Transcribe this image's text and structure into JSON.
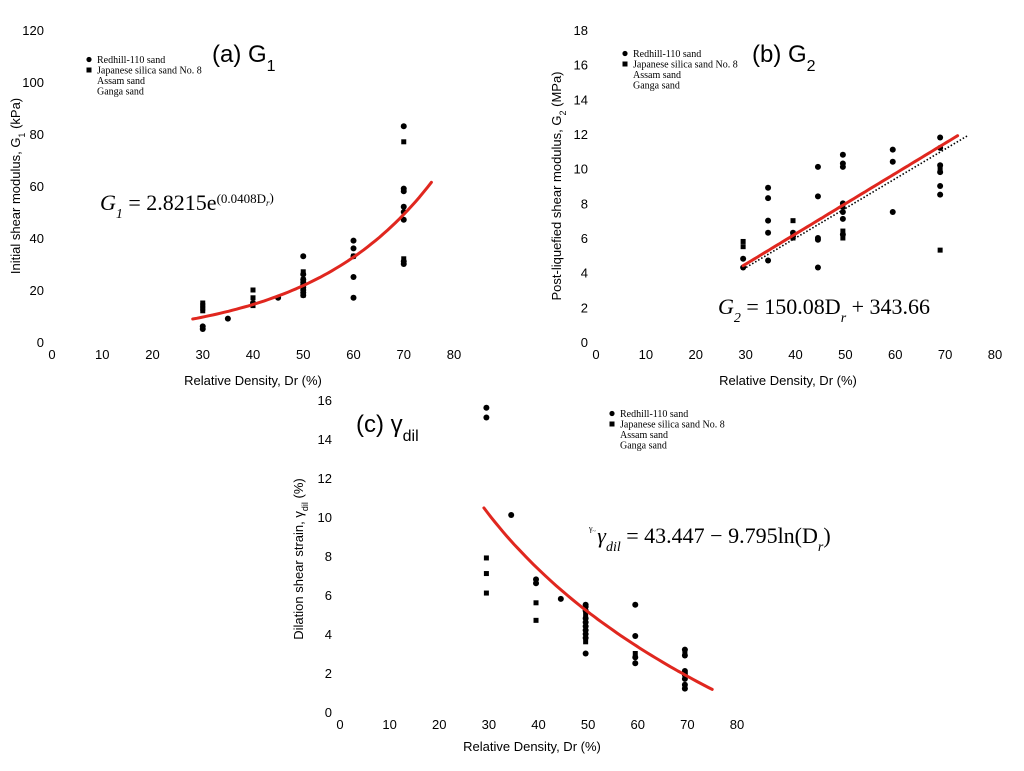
{
  "chart_data": [
    {
      "type": "scatter",
      "title": "(a) G",
      "title_sub": "1",
      "xlabel": "Relative Density, Dr (%)",
      "ylabel": "Initial shear modulus, G",
      "ylabel_sub": "1",
      "ylabel_tail": " (kPa)",
      "xlim": [
        0,
        80
      ],
      "ylim": [
        0,
        120
      ],
      "xticks": [
        0,
        10,
        20,
        30,
        40,
        50,
        60,
        70,
        80
      ],
      "yticks": [
        0,
        20,
        40,
        60,
        80,
        100,
        120
      ],
      "grid": false,
      "legend_position": "top-left",
      "legend": [
        {
          "label": "Redhill-110 sand",
          "marker": "circle"
        },
        {
          "label": "Japanese silica sand No. 8",
          "marker": "square"
        },
        {
          "label": "Assam sand",
          "marker": "none"
        },
        {
          "label": "Ganga sand",
          "marker": "none"
        }
      ],
      "equation": {
        "lhs": "G",
        "lhs_sub": "1",
        "rhs": " = 2.8215e",
        "exp": "(0.0408D",
        "exp_sub": "r",
        "exp_tail": ")"
      },
      "fit": {
        "model": "exp",
        "a": 2.8215,
        "b": 0.0408,
        "x_range": [
          28,
          75.5
        ],
        "color": "#e0271f"
      },
      "series": [
        {
          "name": "Redhill-110 sand",
          "marker": "circle",
          "points": [
            [
              30,
              5
            ],
            [
              30,
              6
            ],
            [
              35,
              9
            ],
            [
              40,
              15
            ],
            [
              45,
              17
            ],
            [
              50,
              18
            ],
            [
              50,
              19
            ],
            [
              50,
              20
            ],
            [
              50,
              21
            ],
            [
              50,
              22
            ],
            [
              50,
              23
            ],
            [
              50,
              24
            ],
            [
              50,
              26
            ],
            [
              50,
              33
            ],
            [
              60,
              17
            ],
            [
              60,
              25
            ],
            [
              60,
              33
            ],
            [
              60,
              36
            ],
            [
              60,
              39
            ],
            [
              70,
              30
            ],
            [
              70,
              31
            ],
            [
              70,
              47
            ],
            [
              70,
              50
            ],
            [
              70,
              52
            ],
            [
              70,
              58
            ],
            [
              70,
              59
            ],
            [
              70,
              83
            ]
          ]
        },
        {
          "name": "Japanese silica sand No. 8",
          "marker": "square",
          "points": [
            [
              30,
              12
            ],
            [
              30,
              13
            ],
            [
              30,
              14
            ],
            [
              30,
              15
            ],
            [
              40,
              14
            ],
            [
              40,
              17
            ],
            [
              40,
              20
            ],
            [
              50,
              18
            ],
            [
              50,
              20
            ],
            [
              50,
              22
            ],
            [
              50,
              24
            ],
            [
              50,
              27
            ],
            [
              60,
              33
            ],
            [
              70,
              32
            ],
            [
              70,
              77
            ]
          ]
        }
      ]
    },
    {
      "type": "scatter",
      "title": "(b) G",
      "title_sub": "2",
      "xlabel": "Relative Density, Dr (%)",
      "ylabel": "Post-liquefied shear modulus, G",
      "ylabel_sub": "2",
      "ylabel_tail": " (MPa)",
      "xlim": [
        0,
        80
      ],
      "ylim": [
        0,
        18
      ],
      "xticks": [
        0,
        10,
        20,
        30,
        40,
        50,
        60,
        70,
        80
      ],
      "yticks": [
        0,
        2,
        4,
        6,
        8,
        10,
        12,
        14,
        16,
        18
      ],
      "grid": false,
      "legend_position": "top-left",
      "legend": [
        {
          "label": "Redhill-110 sand",
          "marker": "circle"
        },
        {
          "label": "Japanese silica sand No. 8",
          "marker": "square"
        },
        {
          "label": "Assam sand",
          "marker": "none"
        },
        {
          "label": "Ganga sand",
          "marker": "none"
        }
      ],
      "equation": {
        "lhs": "G",
        "lhs_sub": "2",
        "rhs": " = 150.08D",
        "rhs_sub": "r",
        "rhs_tail": " + 343.66"
      },
      "fit": {
        "model": "linear",
        "x_range": [
          29.5,
          72.5
        ],
        "y_range": [
          4.4,
          11.9
        ],
        "color": "#e0271f"
      },
      "trendline": {
        "x_range": [
          29.5,
          74.5
        ],
        "y_range": [
          4.2,
          11.9
        ],
        "style": "dotted",
        "color": "#000000"
      },
      "series": [
        {
          "name": "Redhill-110 sand",
          "marker": "circle",
          "points": [
            [
              29.5,
              4.3
            ],
            [
              29.5,
              4.8
            ],
            [
              34.5,
              4.7
            ],
            [
              34.5,
              6.3
            ],
            [
              34.5,
              7
            ],
            [
              34.5,
              8.3
            ],
            [
              34.5,
              8.9
            ],
            [
              39.5,
              6.1
            ],
            [
              39.5,
              6.3
            ],
            [
              44.5,
              4.3
            ],
            [
              44.5,
              5.9
            ],
            [
              44.5,
              6
            ],
            [
              44.5,
              8.4
            ],
            [
              44.5,
              10.1
            ],
            [
              49.5,
              6.2
            ],
            [
              49.5,
              7.1
            ],
            [
              49.5,
              7.5
            ],
            [
              49.5,
              8
            ],
            [
              49.5,
              10.1
            ],
            [
              49.5,
              10.3
            ],
            [
              49.5,
              10.8
            ],
            [
              59.5,
              7.5
            ],
            [
              59.5,
              10.4
            ],
            [
              59.5,
              11.1
            ],
            [
              69,
              8.5
            ],
            [
              69,
              9
            ],
            [
              69,
              9.8
            ],
            [
              69,
              10.2
            ],
            [
              69,
              11.2
            ],
            [
              69,
              11.8
            ]
          ]
        },
        {
          "name": "Japanese silica sand No. 8",
          "marker": "square",
          "points": [
            [
              29.5,
              5.5
            ],
            [
              29.5,
              5.8
            ],
            [
              39.5,
              6
            ],
            [
              39.5,
              7
            ],
            [
              49.5,
              6
            ],
            [
              49.5,
              6.4
            ],
            [
              49.5,
              7.8
            ],
            [
              69,
              5.3
            ],
            [
              69,
              10
            ]
          ]
        }
      ]
    },
    {
      "type": "scatter",
      "title": "(c) γ",
      "title_sub": "dil",
      "xlabel": "Relative Density, Dr (%)",
      "ylabel": "Dilation shear strain, γ",
      "ylabel_sub": "dil",
      "ylabel_tail": " (%)",
      "xlim": [
        0,
        80
      ],
      "ylim": [
        0,
        16
      ],
      "xticks": [
        0,
        10,
        20,
        30,
        40,
        50,
        60,
        70,
        80
      ],
      "yticks": [
        0,
        2,
        4,
        6,
        8,
        10,
        12,
        14,
        16
      ],
      "grid": false,
      "legend_position": "top-right",
      "legend": [
        {
          "label": "Redhill-110 sand",
          "marker": "circle"
        },
        {
          "label": "Japanese silica sand No. 8",
          "marker": "square"
        },
        {
          "label": "Assam sand",
          "marker": "none"
        },
        {
          "label": "Ganga sand",
          "marker": "none"
        }
      ],
      "equation": {
        "prefix": "γ",
        "prefix_sub": "~",
        "lhs": "γ",
        "lhs_sub": "dil",
        "rhs": " = 43.447 − 9.795ln(D",
        "rhs_sub": "r",
        "rhs_tail": ")"
      },
      "fit": {
        "model": "log",
        "a": 43.447,
        "b": 9.795,
        "x_range": [
          29,
          75
        ],
        "color": "#e0271f"
      },
      "series": [
        {
          "name": "Redhill-110 sand",
          "marker": "circle",
          "points": [
            [
              29.5,
              15.1
            ],
            [
              29.5,
              15.6
            ],
            [
              34.5,
              10.1
            ],
            [
              39.5,
              6.6
            ],
            [
              39.5,
              6.8
            ],
            [
              44.5,
              5.8
            ],
            [
              49.5,
              3
            ],
            [
              49.5,
              3.8
            ],
            [
              49.5,
              4
            ],
            [
              49.5,
              4.2
            ],
            [
              49.5,
              4.4
            ],
            [
              49.5,
              4.6
            ],
            [
              49.5,
              4.8
            ],
            [
              49.5,
              5.2
            ],
            [
              49.5,
              5.4
            ],
            [
              49.5,
              5.5
            ],
            [
              59.5,
              2.5
            ],
            [
              59.5,
              2.8
            ],
            [
              59.5,
              3.9
            ],
            [
              59.5,
              5.5
            ],
            [
              69.5,
              1.2
            ],
            [
              69.5,
              1.4
            ],
            [
              69.5,
              1.7
            ],
            [
              69.5,
              1.9
            ],
            [
              69.5,
              2
            ],
            [
              69.5,
              2.1
            ],
            [
              69.5,
              2.9
            ],
            [
              69.5,
              3.2
            ]
          ]
        },
        {
          "name": "Japanese silica sand No. 8",
          "marker": "square",
          "points": [
            [
              29.5,
              6.1
            ],
            [
              29.5,
              7.1
            ],
            [
              29.5,
              7.9
            ],
            [
              39.5,
              4.7
            ],
            [
              39.5,
              5.6
            ],
            [
              49.5,
              3.6
            ],
            [
              49.5,
              5
            ],
            [
              59.5,
              3
            ],
            [
              69.5,
              1.3
            ],
            [
              69.5,
              3
            ]
          ]
        }
      ]
    }
  ]
}
